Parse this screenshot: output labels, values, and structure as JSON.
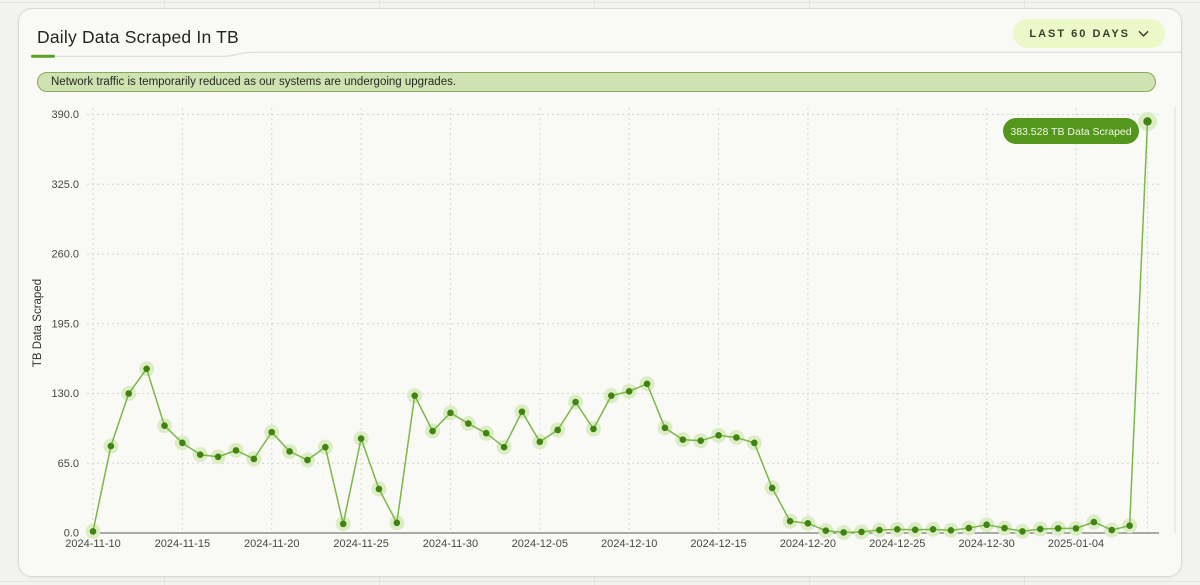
{
  "header": {
    "title": "Daily Data Scraped In TB",
    "range_label": "LAST 60 DAYS"
  },
  "banner": {
    "text": "Network traffic is temporarily reduced as our systems are undergoing upgrades."
  },
  "colors": {
    "accent_green": "#59a024",
    "line_green": "#7cb749",
    "dot_green": "#418310",
    "halo_green": "#dcecc5",
    "tooltip_bg": "#55961c",
    "banner_bg": "#cfe2b2",
    "banner_border": "#8aa85e",
    "button_bg": "#edf8c9"
  },
  "chart_data": {
    "type": "line",
    "title": "Daily Data Scraped In TB",
    "xlabel": "",
    "ylabel": "TB Data Scraped",
    "ylim": [
      0,
      390
    ],
    "yticks": [
      0,
      65,
      130,
      195,
      260,
      325,
      390
    ],
    "ytick_labels": [
      "0.0",
      "65.0",
      "130.0",
      "195.0",
      "260.0",
      "325.0",
      "390.0"
    ],
    "xtick_labels": [
      "2024-11-10",
      "2024-11-15",
      "2024-11-20",
      "2024-11-25",
      "2024-11-30",
      "2024-12-05",
      "2024-12-10",
      "2024-12-15",
      "2024-12-20",
      "2024-12-25",
      "2024-12-30",
      "2025-01-04"
    ],
    "xtick_step": 5,
    "grid": "dotted",
    "legend_position": "none",
    "x": [
      "2024-11-10",
      "2024-11-11",
      "2024-11-12",
      "2024-11-13",
      "2024-11-14",
      "2024-11-15",
      "2024-11-16",
      "2024-11-17",
      "2024-11-18",
      "2024-11-19",
      "2024-11-20",
      "2024-11-21",
      "2024-11-22",
      "2024-11-23",
      "2024-11-24",
      "2024-11-25",
      "2024-11-26",
      "2024-11-27",
      "2024-11-28",
      "2024-11-29",
      "2024-11-30",
      "2024-12-01",
      "2024-12-02",
      "2024-12-03",
      "2024-12-04",
      "2024-12-05",
      "2024-12-06",
      "2024-12-07",
      "2024-12-08",
      "2024-12-09",
      "2024-12-10",
      "2024-12-11",
      "2024-12-12",
      "2024-12-13",
      "2024-12-14",
      "2024-12-15",
      "2024-12-16",
      "2024-12-17",
      "2024-12-18",
      "2024-12-19",
      "2024-12-20",
      "2024-12-21",
      "2024-12-22",
      "2024-12-23",
      "2024-12-24",
      "2024-12-25",
      "2024-12-26",
      "2024-12-27",
      "2024-12-28",
      "2024-12-29",
      "2024-12-30",
      "2024-12-31",
      "2025-01-01",
      "2025-01-02",
      "2025-01-03",
      "2025-01-04",
      "2025-01-05",
      "2025-01-06",
      "2025-01-07",
      "2025-01-08"
    ],
    "values": [
      1.5,
      81,
      130,
      153,
      100,
      84,
      73,
      71,
      77,
      69,
      94,
      76,
      68,
      80,
      8.5,
      88,
      41,
      9.5,
      128,
      95,
      112,
      102,
      93,
      80,
      113,
      85,
      96,
      122,
      97,
      128,
      132,
      139,
      98,
      87,
      86,
      91,
      89,
      84,
      42,
      11,
      9,
      2.2,
      0.5,
      1,
      2.8,
      3.4,
      3,
      3.4,
      2.5,
      4.6,
      7.7,
      4.6,
      1.5,
      3.7,
      4.3,
      4.3,
      10.2,
      2.8,
      6.8,
      383.528
    ],
    "highlight": {
      "x": "2025-01-08",
      "value": 383.528,
      "label": "383.528 TB Data Scraped"
    }
  }
}
